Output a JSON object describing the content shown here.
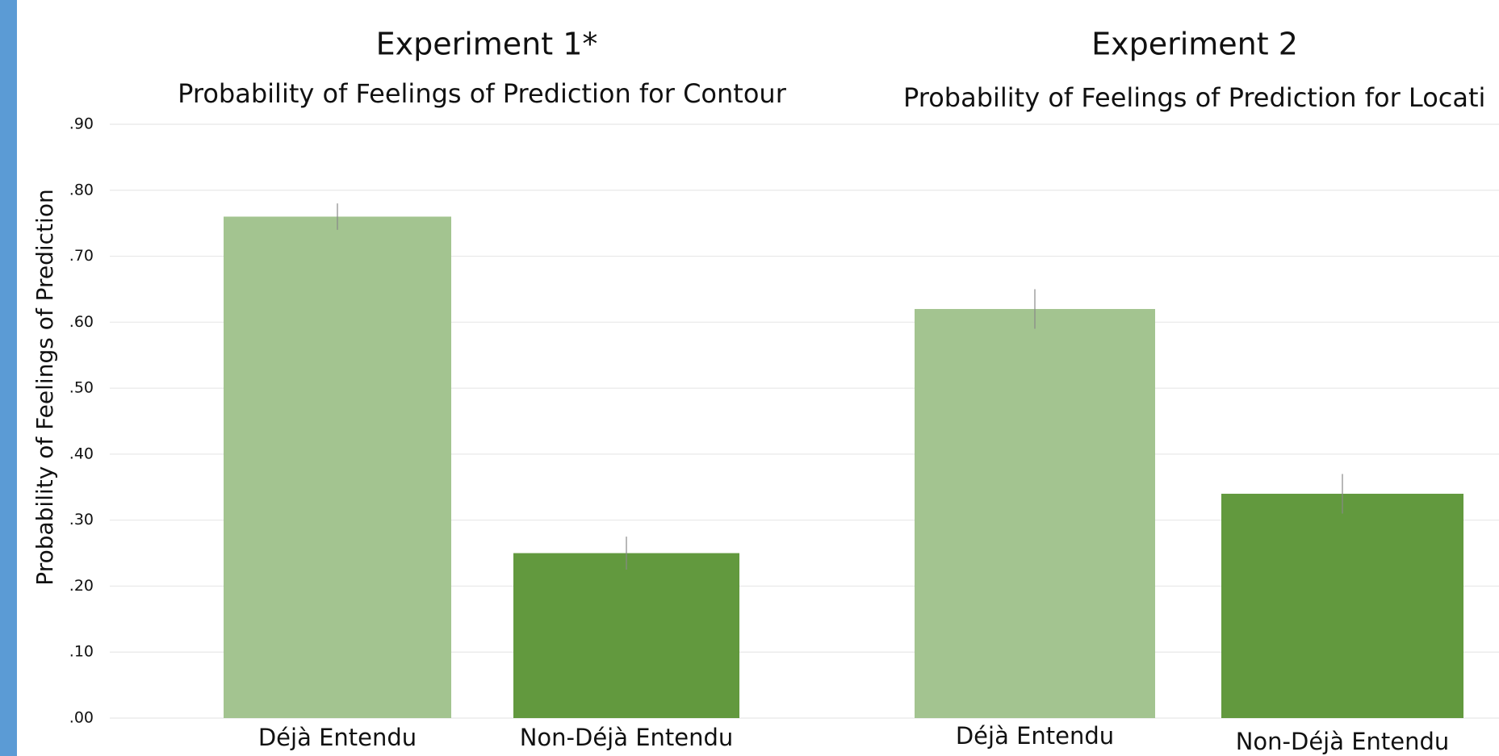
{
  "chart_data": [
    {
      "type": "bar",
      "title": "Experiment 1*",
      "subtitle": "Probability of Feelings of Prediction for Contour",
      "ylabel": "Probability of Feelings of Prediction",
      "categories": [
        "Déjà Entendu",
        "Non-Déjà Entendu"
      ],
      "values": [
        0.76,
        0.25
      ],
      "errors": [
        0.02,
        0.025
      ],
      "colors": [
        "#a3c490",
        "#62993e"
      ],
      "ylim": [
        0,
        0.9
      ],
      "yticks": [
        {
          "value": 0,
          "label": ".00"
        },
        {
          "value": 0.1,
          "label": ".10"
        },
        {
          "value": 0.2,
          "label": ".20"
        },
        {
          "value": 0.3,
          "label": ".30"
        },
        {
          "value": 0.4,
          "label": ".40"
        },
        {
          "value": 0.5,
          "label": ".50"
        },
        {
          "value": 0.6,
          "label": ".60"
        },
        {
          "value": 0.7,
          "label": ".70"
        },
        {
          "value": 0.8,
          "label": ".80"
        },
        {
          "value": 0.9,
          "label": ".90"
        }
      ],
      "grid": true
    },
    {
      "type": "bar",
      "title": "Experiment 2",
      "subtitle": "Probability of Feelings of Prediction for Locati",
      "categories": [
        "Déjà Entendu",
        "Non-Déjà Entendu"
      ],
      "values": [
        0.62,
        0.34
      ],
      "errors": [
        0.03,
        0.03
      ],
      "colors": [
        "#a3c490",
        "#62993e"
      ],
      "ylim": [
        0,
        0.9
      ],
      "yticks": [
        0,
        0.1,
        0.2,
        0.3,
        0.4,
        0.5,
        0.6,
        0.7,
        0.8,
        0.9
      ],
      "grid": true
    }
  ]
}
